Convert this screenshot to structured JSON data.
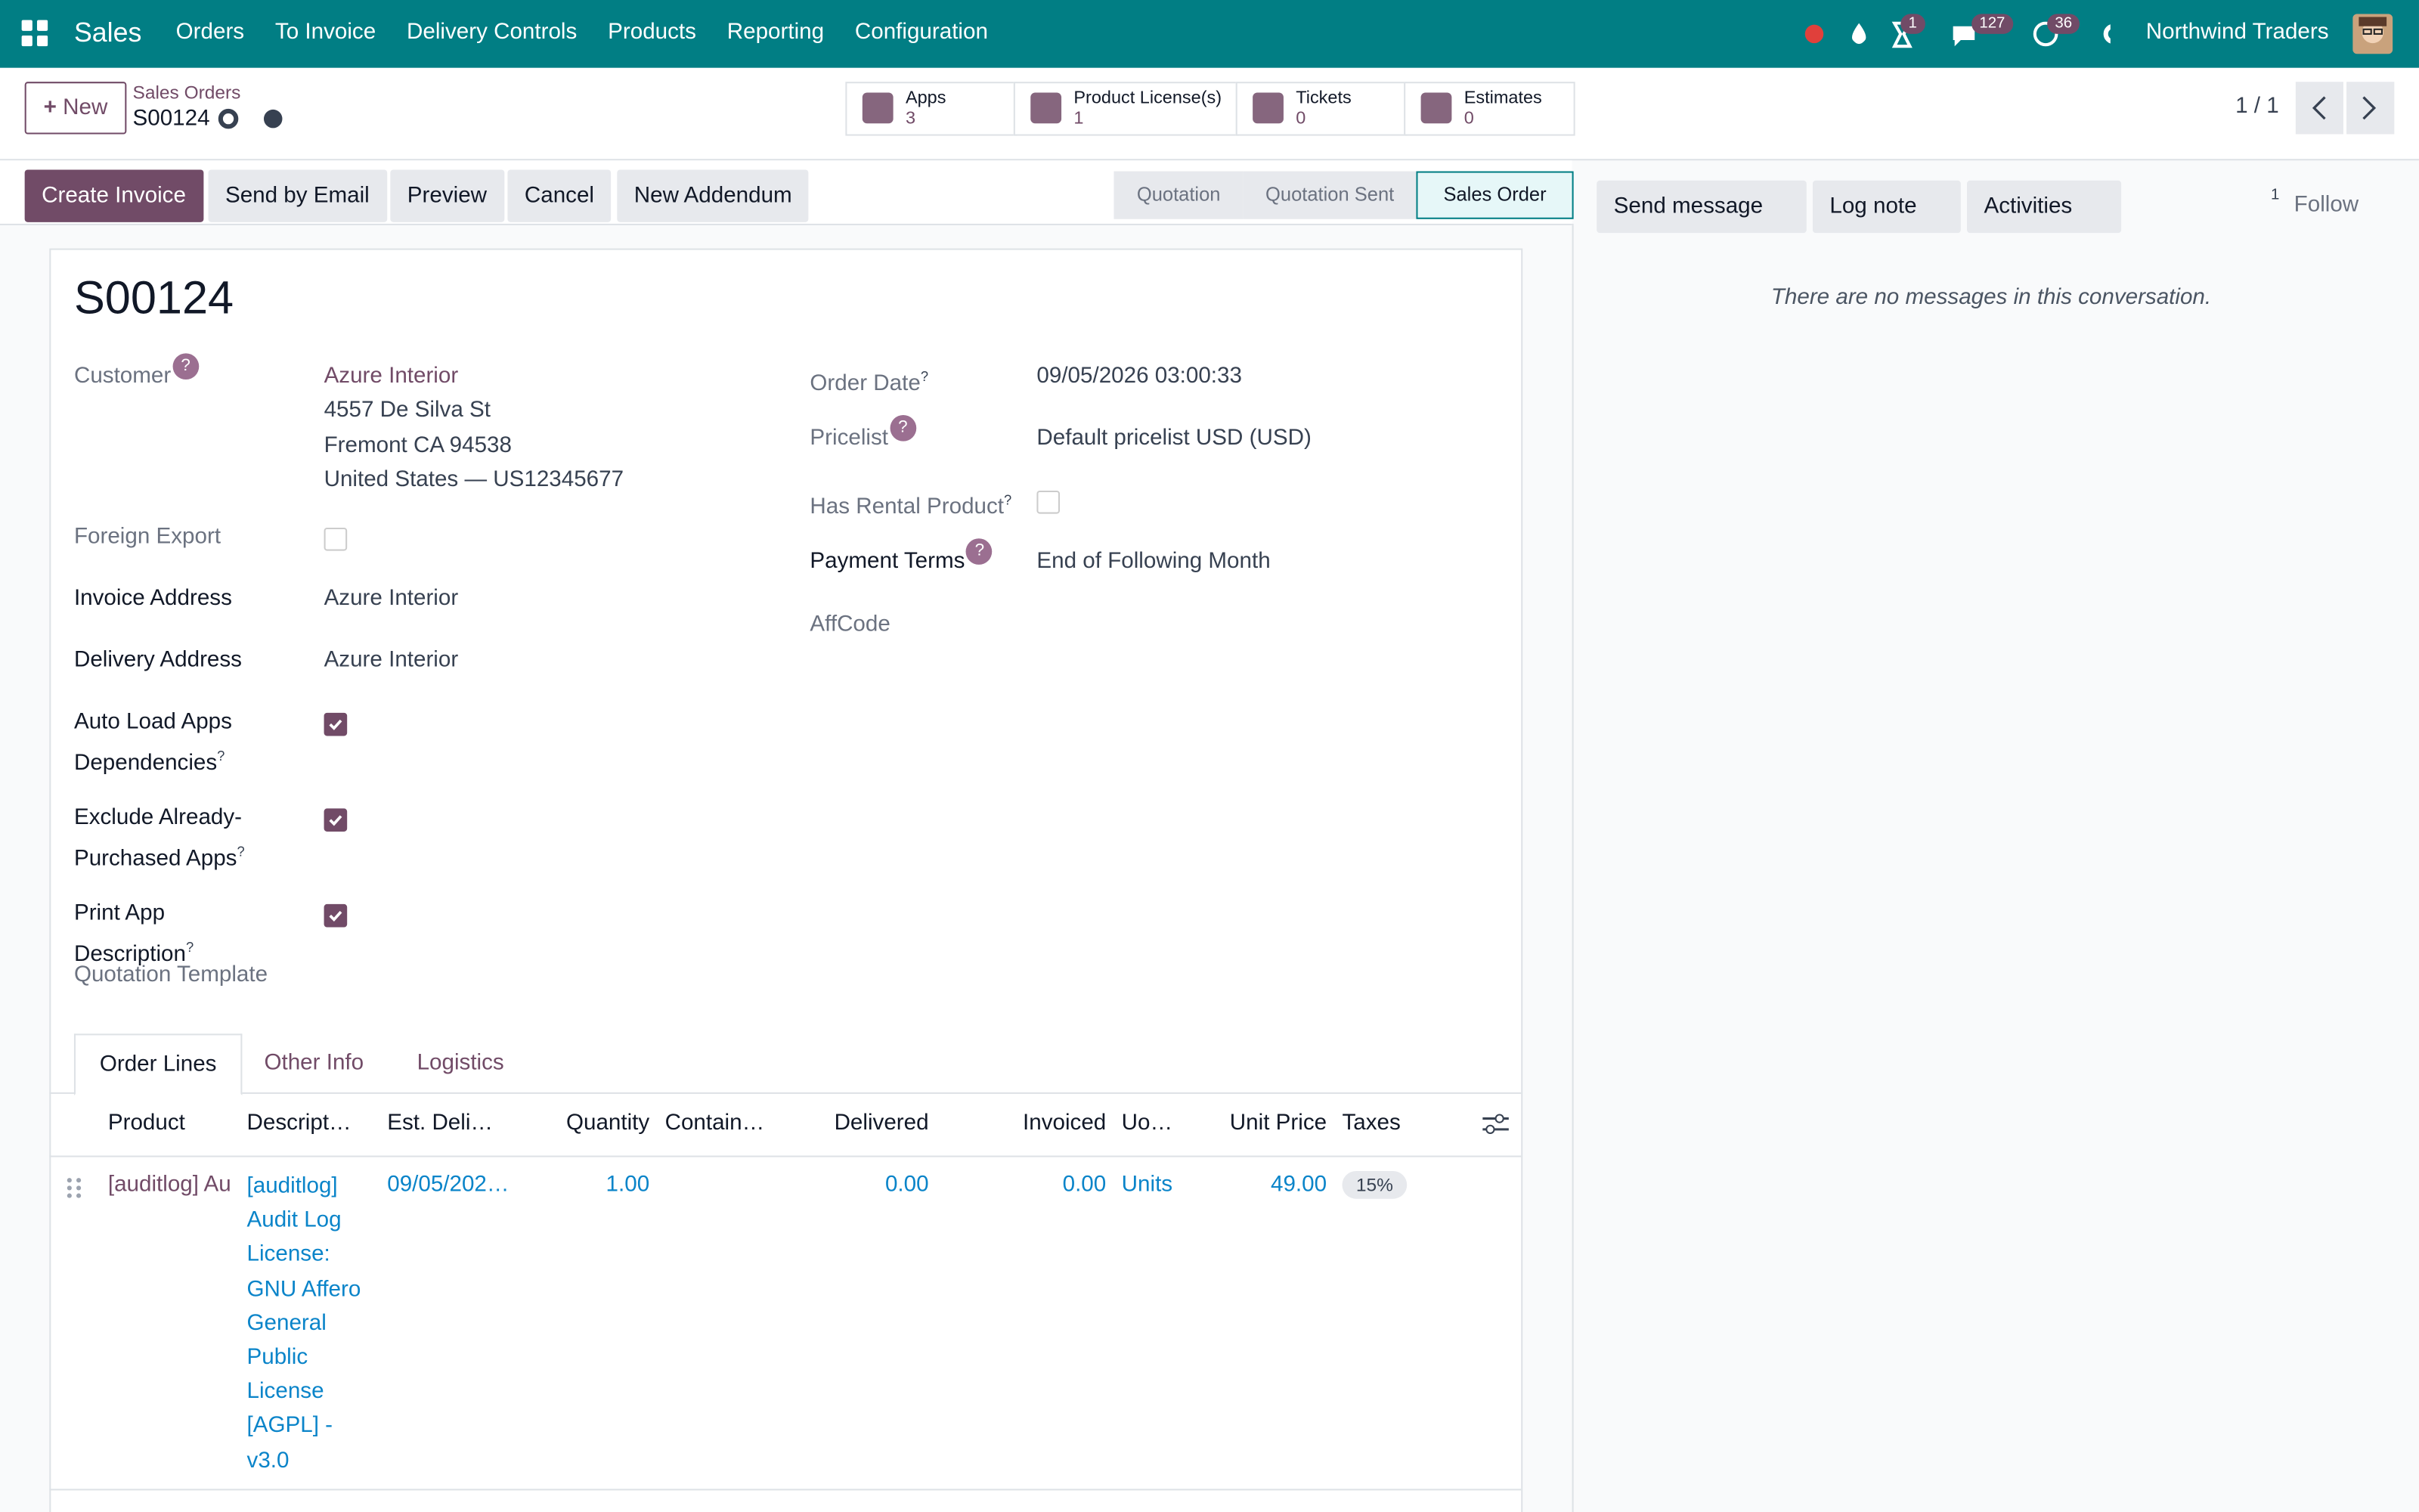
{
  "navbar": {
    "app": "Sales",
    "menu": [
      "Orders",
      "To Invoice",
      "Delivery Controls",
      "Products",
      "Reporting",
      "Configuration"
    ],
    "badges": [
      "1",
      "127",
      "36"
    ],
    "company": "Northwind Traders"
  },
  "control_panel": {
    "new": "New",
    "breadcrumb": "Sales Orders",
    "record": "S00124",
    "pager": "1 / 1",
    "smart_buttons": [
      {
        "label": "Apps",
        "count": "3"
      },
      {
        "label": "Product License(s)",
        "count": "1"
      },
      {
        "label": "Tickets",
        "count": "0"
      },
      {
        "label": "Estimates",
        "count": "0"
      }
    ]
  },
  "actions": [
    "Create Invoice",
    "Send by Email",
    "Preview",
    "Cancel",
    "New Addendum"
  ],
  "statusbar": {
    "stages": [
      "Quotation",
      "Quotation Sent",
      "Sales Order"
    ],
    "current": 2
  },
  "chatter": {
    "buttons": [
      "Send message",
      "Log note",
      "Activities"
    ],
    "followers": "1",
    "follow": "Follow",
    "empty": "There are no messages in this conversation."
  },
  "help": "?",
  "form": {
    "name": "S00124",
    "left": [
      {
        "label": "Customer",
        "help": "circle",
        "value": [
          "Azure Interior",
          "4557 De Silva St",
          "Fremont CA 94538",
          "United States — US12345677"
        ]
      },
      {
        "label": "Foreign Export",
        "checkbox": false
      },
      {
        "label": "Invoice Address",
        "value": [
          "Azure Interior"
        ]
      },
      {
        "label": "Delivery Address",
        "value": [
          "Azure Interior"
        ]
      },
      {
        "label": "Auto Load Apps Dependencies",
        "help": "sup",
        "checkbox": true
      },
      {
        "label": "Exclude Already-Purchased Apps",
        "help": "sup",
        "checkbox": true
      },
      {
        "label": "Print App Description",
        "help": "sup",
        "checkbox": true
      },
      {
        "label": "Quotation Template"
      }
    ],
    "right": [
      {
        "label": "Order Date",
        "help": "sup",
        "value": [
          "09/05/2026 03:00:33"
        ]
      },
      {
        "label": "Pricelist",
        "help": "circle",
        "value": [
          "Default pricelist USD (USD)"
        ]
      },
      {
        "label": "Has Rental Product",
        "help": "sup",
        "checkbox": false
      },
      {
        "label": "Payment Terms",
        "help": "circle",
        "value": [
          "End of Following Month"
        ]
      },
      {
        "label": "AffCode"
      }
    ],
    "tabs": [
      "Order Lines",
      "Other Info",
      "Logistics"
    ],
    "columns": [
      "Product",
      "Descript…",
      "Est. Deli…",
      "Quantity",
      "Contain…",
      "Delivered",
      "Invoiced",
      "Uo…",
      "Unit Price",
      "Taxes"
    ],
    "lines": [
      {
        "product": "[auditlog] Au",
        "description": "[auditlog] Audit Log License: GNU Affero General Public License [AGPL] - v3.0",
        "date": "09/05/202…",
        "quantity": "1.00",
        "delivered": "0.00",
        "invoiced": "0.00",
        "uom": "Units",
        "price": "49.00",
        "taxes": "15%"
      }
    ]
  }
}
